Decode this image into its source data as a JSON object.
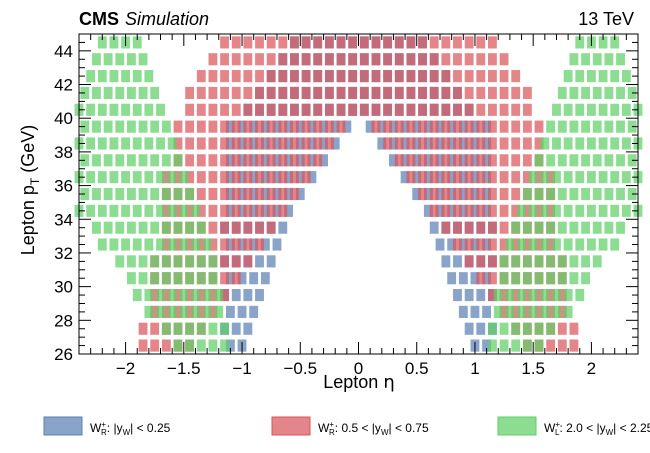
{
  "header": {
    "experiment": "CMS",
    "tag": "Simulation",
    "energy": "13 TeV"
  },
  "chart_data": {
    "type": "heatmap",
    "xlabel": "Lepton η",
    "ylabel": "Lepton p_T (GeV)",
    "xlim": [
      -2.4,
      2.4
    ],
    "ylim": [
      26,
      45
    ],
    "xticks": [
      -2,
      -1.5,
      -1,
      -0.5,
      0,
      0.5,
      1,
      1.5,
      2
    ],
    "xtick_labels": [
      "−2",
      "−1.5",
      "−1",
      "−0.5",
      "0",
      "0.5",
      "1",
      "1.5",
      "2"
    ],
    "yticks": [
      26,
      28,
      30,
      32,
      34,
      36,
      38,
      40,
      42,
      44
    ],
    "ytick_labels": [
      "26",
      "28",
      "30",
      "32",
      "34",
      "36",
      "38",
      "40",
      "42",
      "44"
    ],
    "bin_eta": 0.1,
    "bin_pt": 1,
    "legend_placement": "bottom",
    "series": [
      {
        "legend": {
          "boson": "W",
          "charge": "+",
          "pol": "R",
          "cut": ": |y",
          "sub": "W",
          "range": "| < 0.25"
        },
        "color": "#5b7fb4",
        "eta_range_at_pt": [
          [
            26,
            1.15,
            0.95
          ],
          [
            27,
            1.15,
            0.9
          ],
          [
            28,
            1.15,
            0.85
          ],
          [
            29,
            1.15,
            0.8
          ],
          [
            30,
            1.15,
            0.75
          ],
          [
            31,
            1.15,
            0.7
          ],
          [
            32,
            1.15,
            0.65
          ],
          [
            33,
            1.15,
            0.6
          ],
          [
            34,
            1.15,
            0.55
          ],
          [
            35,
            1.15,
            0.45
          ],
          [
            36,
            1.15,
            0.35
          ],
          [
            37,
            1.15,
            0.25
          ],
          [
            38,
            1.15,
            0.15
          ],
          [
            39,
            1.1,
            0.05
          ],
          [
            40,
            1.0,
            0.0
          ],
          [
            41,
            0.9,
            0.0
          ],
          [
            42,
            0.8,
            0.0
          ],
          [
            43,
            0.7,
            0.0
          ],
          [
            44,
            0.6,
            0.0
          ]
        ]
      },
      {
        "legend": {
          "boson": "W",
          "charge": "+",
          "pol": "R",
          "cut": ": 0.5 < |y",
          "sub": "W",
          "range": "| < 0.75"
        },
        "color": "#d9565c",
        "eta_range_at_pt": [
          [
            26,
            1.9,
            1.4
          ],
          [
            27,
            1.85,
            1.3
          ],
          [
            28,
            1.8,
            1.2
          ],
          [
            29,
            1.8,
            1.1
          ],
          [
            30,
            1.75,
            1.0
          ],
          [
            31,
            1.75,
            0.9
          ],
          [
            32,
            1.7,
            0.8
          ],
          [
            33,
            1.7,
            0.7
          ],
          [
            34,
            1.7,
            0.6
          ],
          [
            35,
            1.65,
            0.5
          ],
          [
            36,
            1.65,
            0.4
          ],
          [
            37,
            1.6,
            0.3
          ],
          [
            38,
            1.6,
            0.2
          ],
          [
            39,
            1.55,
            0.1
          ],
          [
            40,
            1.5,
            0.0
          ],
          [
            41,
            1.45,
            0.0
          ],
          [
            42,
            1.4,
            0.0
          ],
          [
            43,
            1.3,
            0.0
          ],
          [
            44,
            1.2,
            0.0
          ]
        ]
      },
      {
        "legend": {
          "boson": "W",
          "charge": "+",
          "pol": "L",
          "cut": ": 2.0 < |y",
          "sub": "W",
          "range": "| < 2.25"
        },
        "color": "#5fcf68",
        "eta_range_at_pt": [
          [
            26,
            1.6,
            1.1
          ],
          [
            27,
            1.7,
            1.1
          ],
          [
            28,
            1.8,
            1.15
          ],
          [
            29,
            1.9,
            1.15
          ],
          [
            30,
            2.0,
            1.2
          ],
          [
            31,
            2.1,
            1.2
          ],
          [
            32,
            2.2,
            1.25
          ],
          [
            33,
            2.3,
            1.3
          ],
          [
            34,
            2.4,
            1.35
          ],
          [
            35,
            2.4,
            1.4
          ],
          [
            36,
            2.4,
            1.45
          ],
          [
            37,
            2.4,
            1.5
          ],
          [
            38,
            2.4,
            1.55
          ],
          [
            39,
            2.4,
            1.6
          ],
          [
            40,
            2.4,
            1.65
          ],
          [
            41,
            2.4,
            1.7
          ],
          [
            42,
            2.35,
            1.75
          ],
          [
            43,
            2.3,
            1.8
          ],
          [
            44,
            2.2,
            1.85
          ]
        ]
      }
    ]
  }
}
